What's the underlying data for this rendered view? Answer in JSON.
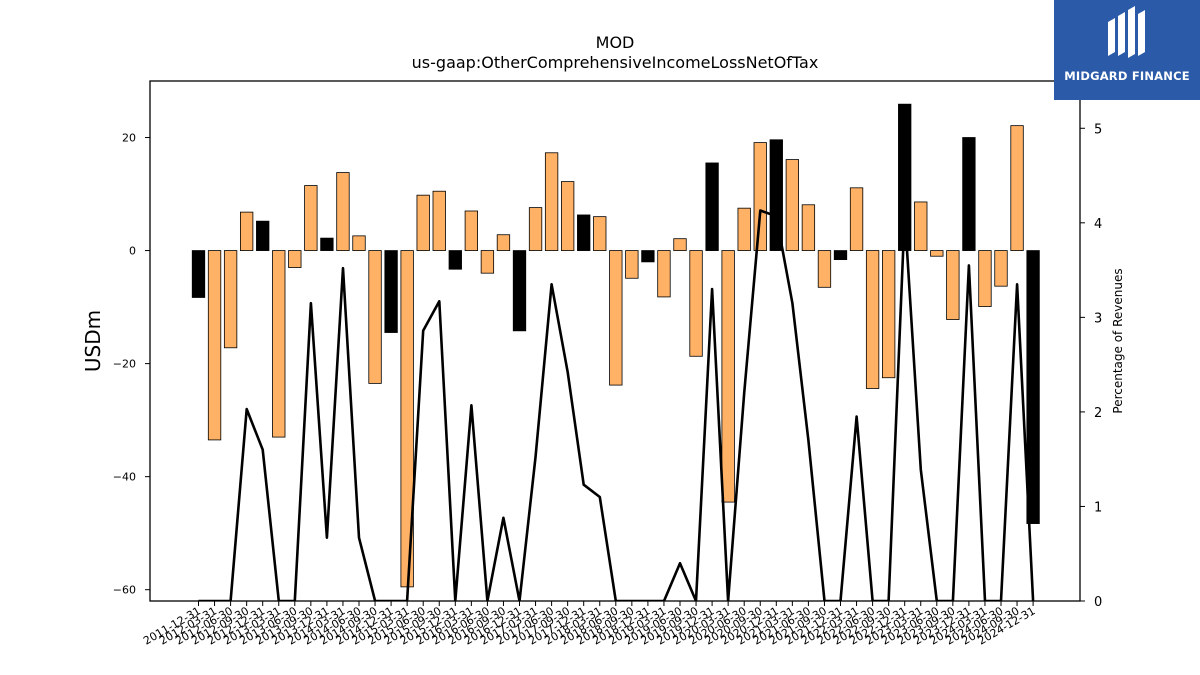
{
  "chart_data": {
    "type": "bar",
    "title": "MOD",
    "subtitle": "us-gaap:OtherComprehensiveIncomeLossNetOfTax",
    "ylabel": "USDm",
    "y2label": "Percentage of Revenues",
    "ylim": [
      -62,
      30
    ],
    "y2lim": [
      0,
      5.5
    ],
    "yticks": [
      -60,
      -40,
      -20,
      0,
      20
    ],
    "y2ticks": [
      0,
      1,
      2,
      3,
      4,
      5
    ],
    "colors": {
      "positive_change": "#ffb266",
      "negative_change": "#000000",
      "line": "#000000",
      "logo_bg": "#2b5aa8"
    },
    "categories": [
      "2011-12-31",
      "2012-03-31",
      "2012-06-30",
      "2012-09-30",
      "2012-12-31",
      "2013-03-31",
      "2013-06-30",
      "2013-09-30",
      "2013-12-31",
      "2014-03-31",
      "2014-06-30",
      "2014-09-30",
      "2014-12-31",
      "2015-03-31",
      "2015-06-30",
      "2015-09-30",
      "2015-12-31",
      "2016-03-31",
      "2016-06-30",
      "2016-09-30",
      "2016-12-31",
      "2017-03-31",
      "2017-06-30",
      "2017-09-30",
      "2017-12-31",
      "2018-03-31",
      "2018-06-30",
      "2018-09-30",
      "2018-12-31",
      "2019-03-31",
      "2019-06-30",
      "2019-09-30",
      "2019-12-31",
      "2020-03-31",
      "2020-06-30",
      "2020-09-30",
      "2020-12-31",
      "2021-03-31",
      "2021-06-30",
      "2021-09-30",
      "2021-12-31",
      "2022-03-31",
      "2022-06-30",
      "2022-09-30",
      "2022-12-31",
      "2023-03-31",
      "2023-06-30",
      "2023-09-30",
      "2023-12-31",
      "2024-03-31",
      "2024-06-30",
      "2024-09-30",
      "2024-12-31"
    ],
    "series": [
      {
        "values": [
          -8.3,
          -33.5,
          -17.2,
          6.8,
          5.2,
          -33.0,
          -3.0,
          11.5,
          2.2,
          13.8,
          2.6,
          -23.5,
          -14.5,
          -59.5,
          9.8,
          10.5,
          -3.3,
          7.0,
          -4.0,
          2.8,
          -14.2,
          7.6,
          17.3,
          12.2,
          6.3,
          6.0,
          -23.8,
          -4.9,
          -2.0,
          -8.2,
          2.1,
          -18.7,
          15.5,
          -44.5,
          7.5,
          19.1,
          19.6,
          16.1,
          8.1,
          -6.5,
          -1.6,
          11.1,
          -24.4,
          -22.5,
          25.9,
          8.6,
          -1.0,
          -12.2,
          20.0,
          -9.9,
          -6.3,
          22.1,
          -48.3
        ],
        "bar_colors": [
          "#000000",
          "#ffb266",
          "#ffb266",
          "#ffb266",
          "#000000",
          "#ffb266",
          "#ffb266",
          "#ffb266",
          "#000000",
          "#ffb266",
          "#ffb266",
          "#ffb266",
          "#000000",
          "#ffb266",
          "#ffb266",
          "#ffb266",
          "#000000",
          "#ffb266",
          "#ffb266",
          "#ffb266",
          "#000000",
          "#ffb266",
          "#ffb266",
          "#ffb266",
          "#000000",
          "#ffb266",
          "#ffb266",
          "#ffb266",
          "#000000",
          "#ffb266",
          "#ffb266",
          "#ffb266",
          "#000000",
          "#ffb266",
          "#ffb266",
          "#ffb266",
          "#000000",
          "#ffb266",
          "#ffb266",
          "#ffb266",
          "#000000",
          "#ffb266",
          "#ffb266",
          "#ffb266",
          "#000000",
          "#ffb266",
          "#ffb266",
          "#ffb266",
          "#000000",
          "#ffb266",
          "#ffb266",
          "#ffb266",
          "#000000"
        ]
      },
      {
        "axis": "y2",
        "values": [
          0,
          0,
          0,
          2.03,
          1.6,
          0,
          0,
          3.15,
          0.67,
          3.52,
          0.67,
          0,
          0,
          0,
          2.86,
          3.17,
          0,
          2.07,
          0,
          0.88,
          0,
          1.52,
          3.35,
          2.42,
          1.23,
          1.1,
          0,
          0,
          0,
          0,
          0.4,
          0,
          3.3,
          0,
          2.2,
          4.13,
          4.07,
          3.15,
          1.7,
          0,
          0,
          1.95,
          0,
          0,
          4.1,
          1.39,
          0,
          0,
          3.55,
          0,
          0,
          3.35,
          0
        ]
      }
    ]
  },
  "logo": {
    "brand": "MIDGARD FINANCE",
    "icon": "midgard-logo-icon"
  }
}
